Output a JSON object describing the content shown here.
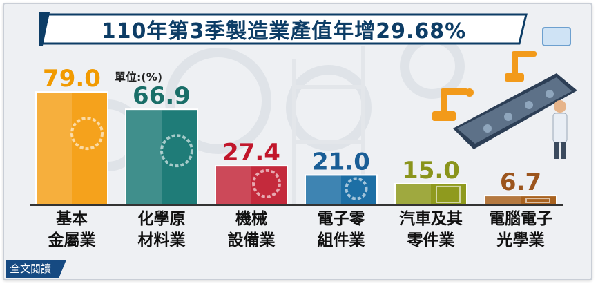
{
  "title": "110年第3季製造業產值年增29.68%",
  "unit_label": "單位:(%)",
  "read_button": "全文閱讀",
  "colors": {
    "title": "#0d3d66",
    "bars": [
      "#f5a21c",
      "#1f7c78",
      "#c42a3c",
      "#1d6fa5",
      "#8f9a1e",
      "#a8621f"
    ],
    "value_labels": [
      "#f19a00",
      "#1a6e68",
      "#c1162b",
      "#1a5e96",
      "#8a941b",
      "#9c551d"
    ]
  },
  "chart_data": {
    "type": "bar",
    "categories": [
      "基本\n金屬業",
      "化學原\n材料業",
      "機械\n設備業",
      "電子零\n組件業",
      "汽車及其\n零件業",
      "電腦電子\n光學業"
    ],
    "values": [
      79.0,
      66.9,
      27.4,
      21.0,
      15.0,
      6.7
    ],
    "value_labels": [
      "79.0",
      "66.9",
      "27.4",
      "21.0",
      "15.0",
      "6.7"
    ],
    "title": "110年第3季製造業產值年增29.68%",
    "ylabel": "單位:(%)",
    "ylim": [
      0,
      80
    ],
    "bar_icons": [
      "gear-icon",
      "gear-icon",
      "gear-icon",
      "circuit-chip-icon",
      "robot-arm-icon",
      "circuit-board-icon"
    ]
  }
}
